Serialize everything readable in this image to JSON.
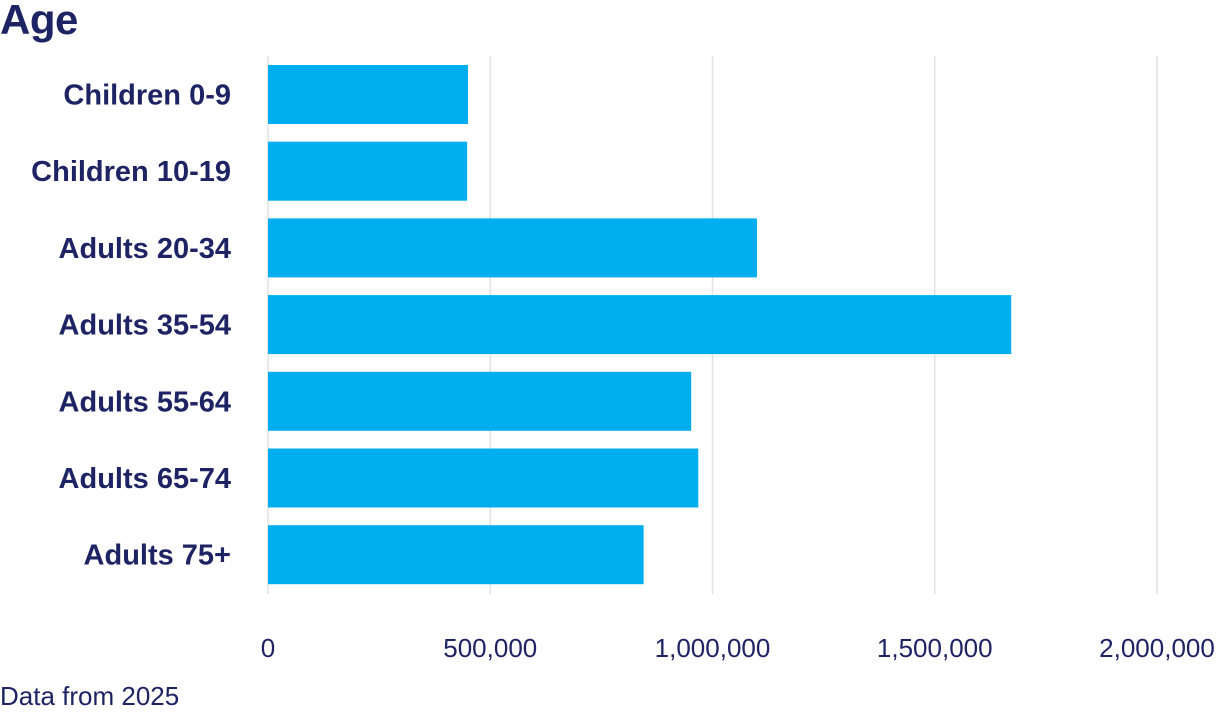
{
  "chart_data": {
    "type": "bar",
    "orientation": "horizontal",
    "title": "Age",
    "categories": [
      "Children 0-9",
      "Children 10-19",
      "Adults 20-34",
      "Adults 35-54",
      "Adults 55-64",
      "Adults 65-74",
      "Adults 75+"
    ],
    "values": [
      450000,
      448000,
      1100000,
      1672000,
      952000,
      968000,
      845000
    ],
    "xlim": [
      0,
      2000000
    ],
    "xticks": [
      0,
      500000,
      1000000,
      1500000,
      2000000
    ],
    "xtick_labels": [
      "0",
      "500,000",
      "1,000,000",
      "1,500,000",
      "2,000,000"
    ],
    "xlabel": "",
    "ylabel": "",
    "grid": "vertical",
    "bar_color": "#00aeef",
    "text_color": "#1d2363",
    "grid_color": "#e2e2e2"
  },
  "footer": {
    "note": "Data from 2025"
  }
}
